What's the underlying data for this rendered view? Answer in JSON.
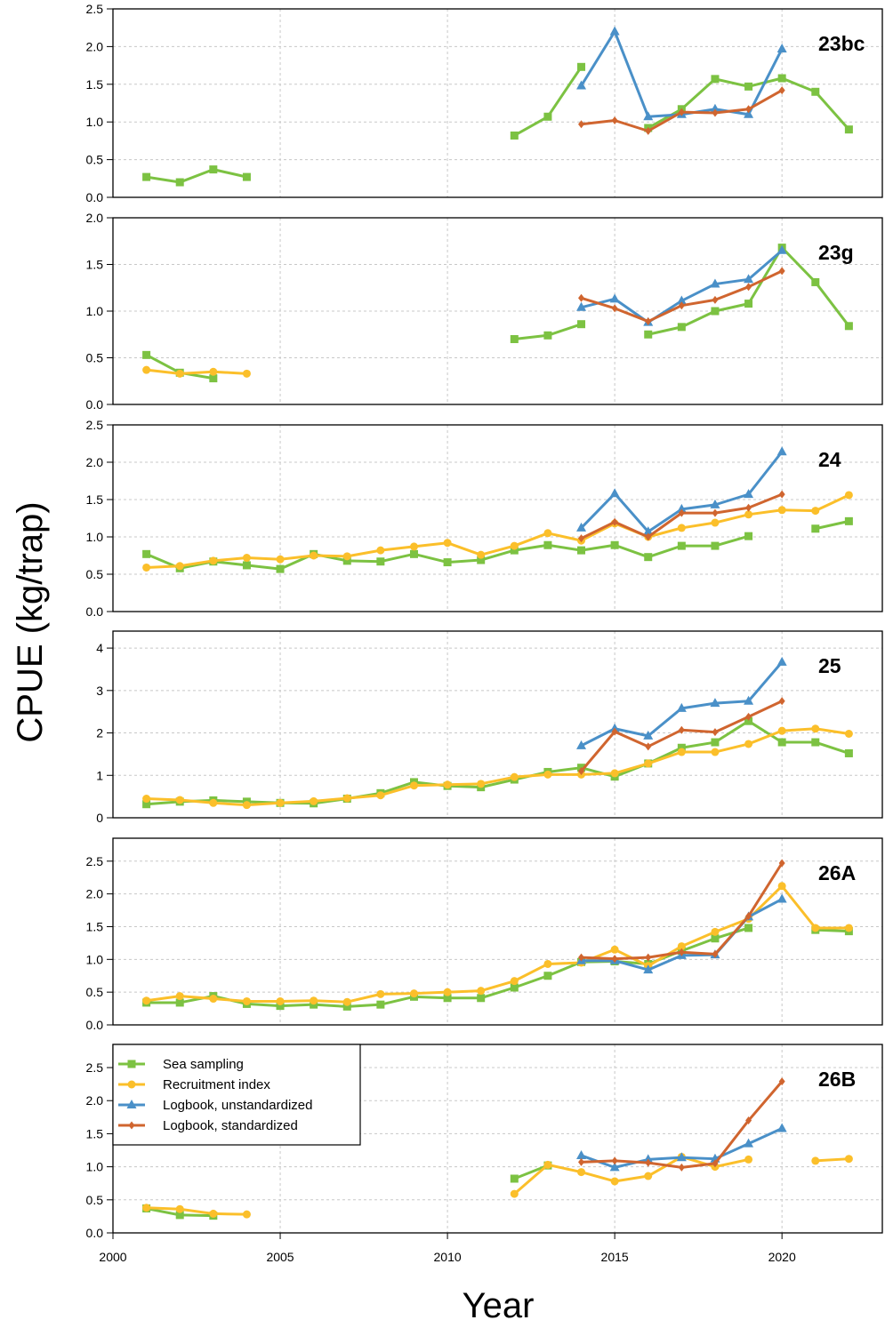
{
  "chart_data": {
    "type": "line",
    "ylabel": "CPUE (kg/trap)",
    "xlabel": "Year",
    "xlim": [
      2000,
      2023
    ],
    "x_ticks": [
      2000,
      2005,
      2010,
      2015,
      2020
    ],
    "grid": true,
    "legend_position": "top-left of bottom panel",
    "series_styles": [
      {
        "name": "Sea sampling",
        "color": "#7cc242",
        "marker": "square"
      },
      {
        "name": "Recruitment index",
        "color": "#fbbf2a",
        "marker": "circle"
      },
      {
        "name": "Logbook, unstandardized",
        "color": "#4a90c8",
        "marker": "triangle"
      },
      {
        "name": "Logbook, standardized",
        "color": "#d0652f",
        "marker": "diamond"
      }
    ],
    "panels": [
      {
        "label": "23bc",
        "ylim": [
          0,
          2.5
        ],
        "y_ticks": [
          "0.0",
          "0.5",
          "1.0",
          "1.5",
          "2.0",
          "2.5"
        ],
        "series": [
          {
            "name": "Sea sampling",
            "x": [
              2001,
              2002,
              2003,
              2004,
              2012,
              2013,
              2014,
              2016,
              2017,
              2018,
              2019,
              2020,
              2021,
              2022
            ],
            "values": [
              0.27,
              0.2,
              0.37,
              0.27,
              0.82,
              1.07,
              1.73,
              0.92,
              1.17,
              1.57,
              1.47,
              1.58,
              1.4,
              0.9
            ]
          },
          {
            "name": "Logbook, unstandardized",
            "x": [
              2014,
              2015,
              2016,
              2017,
              2018,
              2019,
              2020
            ],
            "values": [
              1.48,
              2.2,
              1.07,
              1.1,
              1.17,
              1.1,
              1.97
            ]
          },
          {
            "name": "Logbook, standardized",
            "x": [
              2014,
              2015,
              2016,
              2017,
              2018,
              2019,
              2020
            ],
            "values": [
              0.97,
              1.02,
              0.88,
              1.13,
              1.12,
              1.17,
              1.42
            ]
          }
        ]
      },
      {
        "label": "23g",
        "ylim": [
          0,
          2.0
        ],
        "y_ticks": [
          "0.0",
          "0.5",
          "1.0",
          "1.5",
          "2.0"
        ],
        "series": [
          {
            "name": "Sea sampling",
            "x": [
              2001,
              2002,
              2003,
              2012,
              2013,
              2014,
              2016,
              2017,
              2018,
              2019,
              2020,
              2021,
              2022
            ],
            "values": [
              0.53,
              0.34,
              0.28,
              0.7,
              0.74,
              0.86,
              0.75,
              0.83,
              1.0,
              1.08,
              1.68,
              1.31,
              0.84
            ]
          },
          {
            "name": "Recruitment index",
            "x": [
              2001,
              2002,
              2003,
              2004
            ],
            "values": [
              0.37,
              0.33,
              0.35,
              0.33
            ]
          },
          {
            "name": "Logbook, unstandardized",
            "x": [
              2014,
              2015,
              2016,
              2017,
              2018,
              2019,
              2020
            ],
            "values": [
              1.04,
              1.13,
              0.88,
              1.11,
              1.29,
              1.34,
              1.65
            ]
          },
          {
            "name": "Logbook, standardized",
            "x": [
              2014,
              2015,
              2016,
              2017,
              2018,
              2019,
              2020
            ],
            "values": [
              1.14,
              1.03,
              0.89,
              1.06,
              1.12,
              1.26,
              1.43
            ]
          }
        ]
      },
      {
        "label": "24",
        "ylim": [
          0,
          2.5
        ],
        "y_ticks": [
          "0.0",
          "0.5",
          "1.0",
          "1.5",
          "2.0",
          "2.5"
        ],
        "series": [
          {
            "name": "Sea sampling",
            "x": [
              2001,
              2002,
              2003,
              2004,
              2005,
              2006,
              2007,
              2008,
              2009,
              2010,
              2011,
              2012,
              2013,
              2014,
              2015,
              2016,
              2017,
              2018,
              2019,
              2021,
              2022
            ],
            "values": [
              0.77,
              0.58,
              0.67,
              0.62,
              0.57,
              0.77,
              0.68,
              0.67,
              0.77,
              0.66,
              0.69,
              0.82,
              0.89,
              0.82,
              0.89,
              0.73,
              0.88,
              0.88,
              1.01,
              1.11,
              1.21
            ]
          },
          {
            "name": "Recruitment index",
            "x": [
              2001,
              2002,
              2003,
              2004,
              2005,
              2006,
              2007,
              2008,
              2009,
              2010,
              2011,
              2012,
              2013,
              2014,
              2015,
              2016,
              2017,
              2018,
              2019,
              2020,
              2021,
              2022
            ],
            "values": [
              0.59,
              0.61,
              0.68,
              0.72,
              0.7,
              0.75,
              0.74,
              0.82,
              0.87,
              0.92,
              0.76,
              0.88,
              1.05,
              0.95,
              1.18,
              1.0,
              1.12,
              1.19,
              1.3,
              1.36,
              1.35,
              1.56
            ]
          },
          {
            "name": "Logbook, unstandardized",
            "x": [
              2014,
              2015,
              2016,
              2017,
              2018,
              2019,
              2020
            ],
            "values": [
              1.12,
              1.58,
              1.07,
              1.37,
              1.43,
              1.57,
              2.14
            ]
          },
          {
            "name": "Logbook, standardized",
            "x": [
              2014,
              2015,
              2016,
              2017,
              2018,
              2019,
              2020
            ],
            "values": [
              0.98,
              1.2,
              1.0,
              1.32,
              1.32,
              1.39,
              1.57
            ]
          }
        ]
      },
      {
        "label": "25",
        "ylim": [
          0,
          4.4
        ],
        "y_ticks": [
          "0",
          "1",
          "2",
          "3",
          "4"
        ],
        "series": [
          {
            "name": "Sea sampling",
            "x": [
              2001,
              2002,
              2003,
              2004,
              2005,
              2006,
              2007,
              2008,
              2009,
              2010,
              2011,
              2012,
              2013,
              2014,
              2015,
              2016,
              2017,
              2018,
              2019,
              2020,
              2021,
              2022
            ],
            "values": [
              0.32,
              0.38,
              0.41,
              0.38,
              0.35,
              0.34,
              0.45,
              0.58,
              0.84,
              0.75,
              0.72,
              0.9,
              1.08,
              1.18,
              0.97,
              1.28,
              1.65,
              1.78,
              2.28,
              1.78,
              1.78,
              1.52
            ]
          },
          {
            "name": "Recruitment index",
            "x": [
              2001,
              2002,
              2003,
              2004,
              2005,
              2006,
              2007,
              2008,
              2009,
              2010,
              2011,
              2012,
              2013,
              2014,
              2015,
              2016,
              2017,
              2018,
              2019,
              2020,
              2021,
              2022
            ],
            "values": [
              0.45,
              0.42,
              0.35,
              0.3,
              0.35,
              0.39,
              0.46,
              0.53,
              0.76,
              0.78,
              0.8,
              0.96,
              1.02,
              1.02,
              1.05,
              1.28,
              1.55,
              1.55,
              1.74,
              2.05,
              2.1,
              1.98
            ]
          },
          {
            "name": "Logbook, unstandardized",
            "x": [
              2014,
              2015,
              2016,
              2017,
              2018,
              2019,
              2020
            ],
            "values": [
              1.7,
              2.1,
              1.93,
              2.58,
              2.7,
              2.75,
              3.67
            ]
          },
          {
            "name": "Logbook, standardized",
            "x": [
              2014,
              2015,
              2016,
              2017,
              2018,
              2019,
              2020
            ],
            "values": [
              1.1,
              2.03,
              1.68,
              2.07,
              2.02,
              2.38,
              2.75
            ]
          }
        ]
      },
      {
        "label": "26A",
        "ylim": [
          0,
          2.85
        ],
        "y_ticks": [
          "0.0",
          "0.5",
          "1.0",
          "1.5",
          "2.0",
          "2.5"
        ],
        "series": [
          {
            "name": "Sea sampling",
            "x": [
              2001,
              2002,
              2003,
              2004,
              2005,
              2006,
              2007,
              2008,
              2009,
              2010,
              2011,
              2012,
              2013,
              2014,
              2015,
              2016,
              2017,
              2018,
              2019,
              2021,
              2022
            ],
            "values": [
              0.34,
              0.34,
              0.44,
              0.32,
              0.29,
              0.31,
              0.28,
              0.31,
              0.43,
              0.41,
              0.41,
              0.57,
              0.75,
              0.96,
              0.97,
              0.93,
              1.13,
              1.32,
              1.48,
              1.45,
              1.43
            ]
          },
          {
            "name": "Recruitment index",
            "x": [
              2001,
              2002,
              2003,
              2004,
              2005,
              2006,
              2007,
              2008,
              2009,
              2010,
              2011,
              2012,
              2013,
              2014,
              2015,
              2016,
              2017,
              2018,
              2019,
              2020,
              2021,
              2022
            ],
            "values": [
              0.37,
              0.44,
              0.4,
              0.36,
              0.36,
              0.37,
              0.35,
              0.47,
              0.48,
              0.5,
              0.52,
              0.67,
              0.93,
              0.95,
              1.15,
              0.9,
              1.2,
              1.42,
              1.62,
              2.12,
              1.48,
              1.48
            ]
          },
          {
            "name": "Logbook, unstandardized",
            "x": [
              2014,
              2015,
              2016,
              2017,
              2018,
              2019,
              2020
            ],
            "values": [
              0.98,
              0.98,
              0.84,
              1.06,
              1.07,
              1.65,
              1.92
            ]
          },
          {
            "name": "Logbook, standardized",
            "x": [
              2014,
              2015,
              2016,
              2017,
              2018,
              2019,
              2020
            ],
            "values": [
              1.03,
              1.01,
              1.03,
              1.11,
              1.08,
              1.66,
              2.47
            ]
          }
        ]
      },
      {
        "label": "26B",
        "ylim": [
          0,
          2.85
        ],
        "y_ticks": [
          "0.0",
          "0.5",
          "1.0",
          "1.5",
          "2.0",
          "2.5"
        ],
        "series": [
          {
            "name": "Sea sampling",
            "x": [
              2001,
              2002,
              2003,
              2012,
              2013
            ],
            "values": [
              0.37,
              0.27,
              0.26,
              0.82,
              1.02
            ]
          },
          {
            "name": "Recruitment index",
            "x": [
              2001,
              2002,
              2003,
              2004,
              2012,
              2013,
              2014,
              2015,
              2016,
              2017,
              2018,
              2019,
              2021,
              2022
            ],
            "values": [
              0.38,
              0.36,
              0.29,
              0.28,
              0.59,
              1.03,
              0.92,
              0.78,
              0.86,
              1.15,
              1.0,
              1.11,
              1.09,
              1.12
            ]
          },
          {
            "name": "Logbook, unstandardized",
            "x": [
              2014,
              2015,
              2016,
              2017,
              2018,
              2019,
              2020
            ],
            "values": [
              1.17,
              0.99,
              1.11,
              1.14,
              1.12,
              1.35,
              1.58
            ]
          },
          {
            "name": "Logbook, standardized",
            "x": [
              2014,
              2015,
              2016,
              2017,
              2018,
              2019,
              2020
            ],
            "values": [
              1.07,
              1.09,
              1.06,
              0.99,
              1.05,
              1.7,
              2.29
            ]
          }
        ]
      }
    ]
  }
}
